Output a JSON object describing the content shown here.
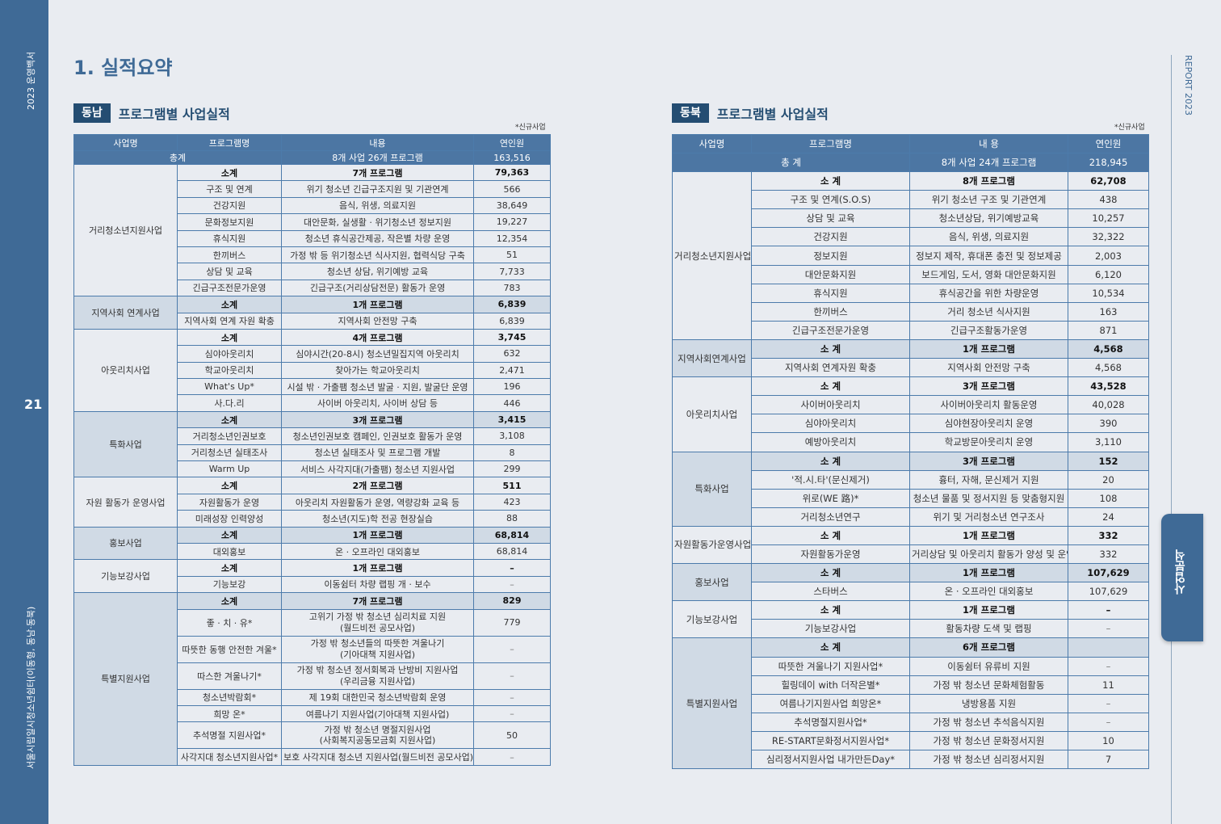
{
  "sidebar_left": {
    "top_text": "2023 운영백서",
    "page_number": "21",
    "bottom_text": "서울시립일시청소년쉼터(이동형, 동남·동북)"
  },
  "sidebar_right": {
    "top_text": "REPORT 2023",
    "tab_label": "사업분석"
  },
  "page_title": "1. 실적요약",
  "left": {
    "badge": "동남",
    "title": "프로그램별 사업실적",
    "note": "*신규사업",
    "headers": [
      "사업명",
      "프로그램명",
      "내용",
      "연인원"
    ],
    "total": {
      "label": "총계",
      "content": "8개 사업 26개 프로그램",
      "count": "163,516"
    },
    "groups": [
      {
        "name": "거리청소년지원사업",
        "subtotal": {
          "label": "소계",
          "content": "7개 프로그램",
          "count": "79,363"
        },
        "rows": [
          {
            "program": "구조 및 연계",
            "content": "위기 청소년 긴급구조지원 및 기관연계",
            "count": "566"
          },
          {
            "program": "건강지원",
            "content": "음식, 위생, 의료지원",
            "count": "38,649"
          },
          {
            "program": "문화정보지원",
            "content": "대안문화, 실생활 · 위기청소년 정보지원",
            "count": "19,227"
          },
          {
            "program": "휴식지원",
            "content": "청소년 휴식공간제공, 작은별 차량 운영",
            "count": "12,354"
          },
          {
            "program": "한끼버스",
            "content": "가정 밖 등 위기청소년 식사지원, 협력식당 구축",
            "count": "51"
          },
          {
            "program": "상담 및 교육",
            "content": "청소년 상담, 위기예방 교육",
            "count": "7,733"
          },
          {
            "program": "긴급구조전문가운영",
            "content": "긴급구조(거리상담전문) 활동가 운영",
            "count": "783"
          }
        ]
      },
      {
        "name": "지역사회 연계사업",
        "subtotal": {
          "label": "소계",
          "content": "1개 프로그램",
          "count": "6,839"
        },
        "rows": [
          {
            "program": "지역사회 연계 자원 확충",
            "content": "지역사회 안전망 구축",
            "count": "6,839"
          }
        ]
      },
      {
        "name": "아웃리치사업",
        "subtotal": {
          "label": "소계",
          "content": "4개 프로그램",
          "count": "3,745"
        },
        "rows": [
          {
            "program": "심야아웃리치",
            "content": "심야시간(20-8시) 청소년밀집지역 아웃리치",
            "count": "632"
          },
          {
            "program": "학교아웃리치",
            "content": "찾아가는 학교아웃리치",
            "count": "2,471"
          },
          {
            "program": "What's Up*",
            "content": "시설 밖 · 가출팸 청소년 발굴 · 지원, 발굴단 운영",
            "count": "196"
          },
          {
            "program": "사.다.리",
            "content": "사이버 아웃리치, 사이버 상담 등",
            "count": "446"
          }
        ]
      },
      {
        "name": "특화사업",
        "subtotal": {
          "label": "소계",
          "content": "3개 프로그램",
          "count": "3,415"
        },
        "rows": [
          {
            "program": "거리청소년인권보호",
            "content": "청소년인권보호 캠페인, 인권보호 활동가 운영",
            "count": "3,108"
          },
          {
            "program": "거리청소년 실태조사",
            "content": "청소년 실태조사 및 프로그램 개발",
            "count": "8"
          },
          {
            "program": "Warm Up",
            "content": "서비스 사각지대(가출팸) 청소년 지원사업",
            "count": "299"
          }
        ]
      },
      {
        "name": "자원 활동가 운영사업",
        "subtotal": {
          "label": "소계",
          "content": "2개 프로그램",
          "count": "511"
        },
        "rows": [
          {
            "program": "자원활동가 운영",
            "content": "아웃리치 자원활동가 운영, 역량강화 교육 등",
            "count": "423"
          },
          {
            "program": "미래성장 인력양성",
            "content": "청소년(지도)학 전공 현장실습",
            "count": "88"
          }
        ]
      },
      {
        "name": "홍보사업",
        "subtotal": {
          "label": "소계",
          "content": "1개 프로그램",
          "count": "68,814"
        },
        "rows": [
          {
            "program": "대외홍보",
            "content": "온 · 오프라인 대외홍보",
            "count": "68,814"
          }
        ]
      },
      {
        "name": "기능보강사업",
        "subtotal": {
          "label": "소계",
          "content": "1개 프로그램",
          "count": "–"
        },
        "rows": [
          {
            "program": "기능보강",
            "content": "이동쉼터 차량 랩핑 개 · 보수",
            "count": "–"
          }
        ]
      },
      {
        "name": "특별지원사업",
        "subtotal": {
          "label": "소계",
          "content": "7개 프로그램",
          "count": "829"
        },
        "rows": [
          {
            "program": "좋 · 치 · 유*",
            "content": "고위기 가정 밖 청소년 심리치료 지원\n(월드비전 공모사업)",
            "count": "779"
          },
          {
            "program": "따뜻한 동행 안전한 겨울*",
            "content": "가정 밖 청소년들의 따뜻한 겨울나기\n(기아대책 지원사업)",
            "count": "–"
          },
          {
            "program": "따스한 겨울나기*",
            "content": "가정 밖 청소년 정서회복과 난방비 지원사업\n(우리금융 지원사업)",
            "count": "–"
          },
          {
            "program": "청소년박람회*",
            "content": "제 19회 대한민국 청소년박람회 운영",
            "count": "–"
          },
          {
            "program": "희망 온*",
            "content": "여름나기 지원사업(기아대책 지원사업)",
            "count": "–"
          },
          {
            "program": "추석명절 지원사업*",
            "content": "가정 밖 청소년 명절지원사업\n(사회복지공동모금회 지원사업)",
            "count": "50"
          },
          {
            "program": "사각지대 청소년지원사업*",
            "content": "보호 사각지대 청소년 지원사업(월드비전 공모사업)",
            "count": "–"
          }
        ]
      }
    ]
  },
  "right": {
    "badge": "동북",
    "title": "프로그램별 사업실적",
    "note": "*신규사업",
    "headers": [
      "사업명",
      "프로그램명",
      "내 용",
      "연인원"
    ],
    "total": {
      "label": "총 계",
      "content": "8개 사업 24개 프로그램",
      "count": "218,945"
    },
    "groups": [
      {
        "name": "거리청소년지원사업",
        "subtotal": {
          "label": "소 계",
          "content": "8개 프로그램",
          "count": "62,708"
        },
        "rows": [
          {
            "program": "구조 및 연계(S.O.S)",
            "content": "위기 청소년 구조 및 기관연계",
            "count": "438"
          },
          {
            "program": "상담 및 교육",
            "content": "청소년상담, 위기예방교육",
            "count": "10,257"
          },
          {
            "program": "건강지원",
            "content": "음식, 위생, 의료지원",
            "count": "32,322"
          },
          {
            "program": "정보지원",
            "content": "정보지 제작, 휴대폰 충전 및 정보제공",
            "count": "2,003"
          },
          {
            "program": "대안문화지원",
            "content": "보드게임, 도서, 영화 대안문화지원",
            "count": "6,120"
          },
          {
            "program": "휴식지원",
            "content": "휴식공간을 위한 차량운영",
            "count": "10,534"
          },
          {
            "program": "한끼버스",
            "content": "거리 청소년 식사지원",
            "count": "163"
          },
          {
            "program": "긴급구조전문가운영",
            "content": "긴급구조활동가운영",
            "count": "871"
          }
        ]
      },
      {
        "name": "지역사회연계사업",
        "subtotal": {
          "label": "소 계",
          "content": "1개 프로그램",
          "count": "4,568"
        },
        "rows": [
          {
            "program": "지역사회 연계자원 확충",
            "content": "지역사회 안전망 구축",
            "count": "4,568"
          }
        ]
      },
      {
        "name": "아웃리치사업",
        "subtotal": {
          "label": "소 계",
          "content": "3개 프로그램",
          "count": "43,528"
        },
        "rows": [
          {
            "program": "사이버아웃리치",
            "content": "사이버아웃리치 활동운영",
            "count": "40,028"
          },
          {
            "program": "심야아웃리치",
            "content": "심야현장아웃리치 운영",
            "count": "390"
          },
          {
            "program": "예방아웃리치",
            "content": "학교방문아웃리치 운영",
            "count": "3,110"
          }
        ]
      },
      {
        "name": "특화사업",
        "subtotal": {
          "label": "소 계",
          "content": "3개 프로그램",
          "count": "152"
        },
        "rows": [
          {
            "program": "'적.시.타'(문신제거)",
            "content": "흉터, 자해, 문신제거 지원",
            "count": "20"
          },
          {
            "program": "위로(WE 路)*",
            "content": "청소년 물품 및 정서지원 등 맞춤형지원",
            "count": "108"
          },
          {
            "program": "거리청소년연구",
            "content": "위기 및 거리청소년 연구조사",
            "count": "24"
          }
        ]
      },
      {
        "name": "자원활동가운영사업",
        "subtotal": {
          "label": "소 계",
          "content": "1개 프로그램",
          "count": "332"
        },
        "rows": [
          {
            "program": "자원활동가운영",
            "content": "거리상담 및 아웃리치 활동가 양성 및 운영",
            "count": "332"
          }
        ]
      },
      {
        "name": "홍보사업",
        "subtotal": {
          "label": "소 계",
          "content": "1개 프로그램",
          "count": "107,629"
        },
        "rows": [
          {
            "program": "스타버스",
            "content": "온 · 오프라인 대외홍보",
            "count": "107,629"
          }
        ]
      },
      {
        "name": "기능보강사업",
        "subtotal": {
          "label": "소 계",
          "content": "1개 프로그램",
          "count": "–"
        },
        "rows": [
          {
            "program": "기능보강사업",
            "content": "활동차량 도색 및 랩핑",
            "count": "–"
          }
        ]
      },
      {
        "name": "특별지원사업",
        "subtotal": {
          "label": "소 계",
          "content": "6개 프로그램",
          "count": ""
        },
        "rows": [
          {
            "program": "따뜻한 겨울나기 지원사업*",
            "content": "이동쉼터 유류비 지원",
            "count": "–"
          },
          {
            "program": "힐링데이 with 더작은별*",
            "content": "가정 밖 청소년 문화체험활동",
            "count": "11"
          },
          {
            "program": "여름나기지원사업 희망온*",
            "content": "냉방용품 지원",
            "count": "–"
          },
          {
            "program": "추석명절지원사업*",
            "content": "가정 밖 청소년 추석음식지원",
            "count": "–"
          },
          {
            "program": "RE-START문화정서지원사업*",
            "content": "가정 밖 청소년 문화정서지원",
            "count": "10"
          },
          {
            "program": "심리정서지원사업 내가만든Day*",
            "content": "가정 밖 청소년 심리정서지원",
            "count": "7"
          }
        ]
      }
    ]
  }
}
